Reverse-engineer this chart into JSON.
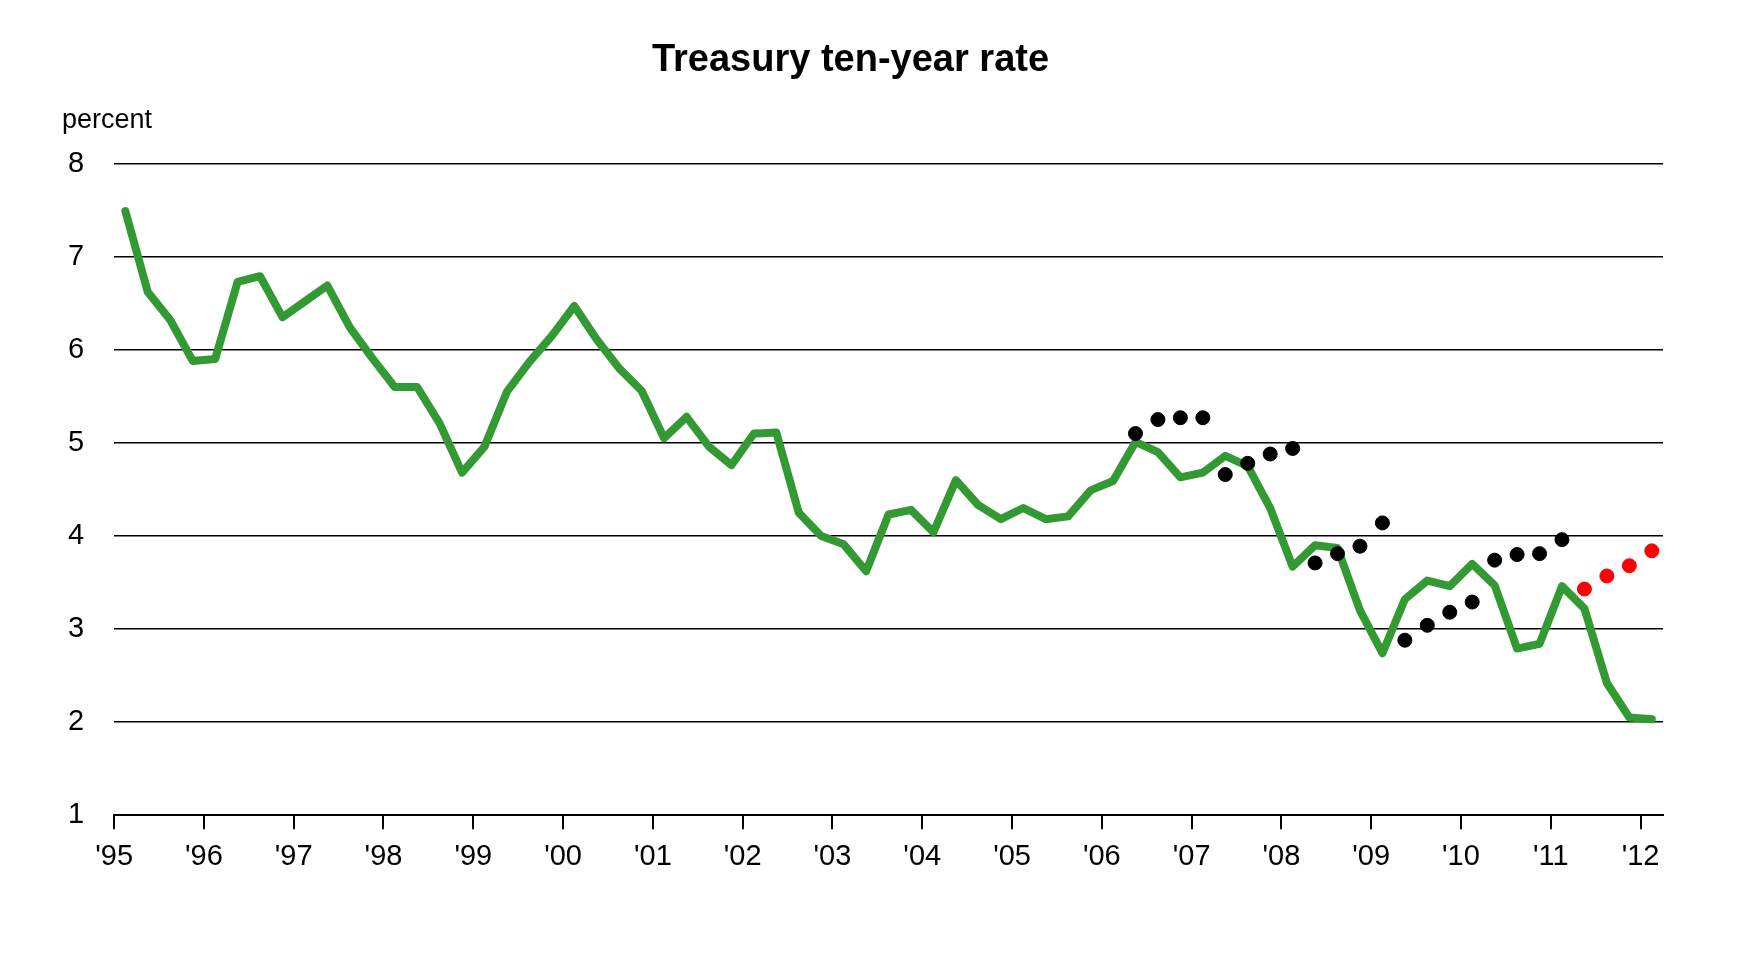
{
  "chart_data": {
    "type": "line",
    "title": "Treasury ten-year rate",
    "ylabel": "percent",
    "xlim": [
      1995,
      2012.25
    ],
    "xticks": [
      {
        "value": 1995,
        "label": "'95"
      },
      {
        "value": 1996,
        "label": "'96"
      },
      {
        "value": 1997,
        "label": "'97"
      },
      {
        "value": 1998,
        "label": "'98"
      },
      {
        "value": 1999,
        "label": "'99"
      },
      {
        "value": 2000,
        "label": "'00"
      },
      {
        "value": 2001,
        "label": "'01"
      },
      {
        "value": 2002,
        "label": "'02"
      },
      {
        "value": 2003,
        "label": "'03"
      },
      {
        "value": 2004,
        "label": "'04"
      },
      {
        "value": 2005,
        "label": "'05"
      },
      {
        "value": 2006,
        "label": "'06"
      },
      {
        "value": 2007,
        "label": "'07"
      },
      {
        "value": 2008,
        "label": "'08"
      },
      {
        "value": 2009,
        "label": "'09"
      },
      {
        "value": 2010,
        "label": "'10"
      },
      {
        "value": 2011,
        "label": "'11"
      },
      {
        "value": 2012,
        "label": "'12"
      }
    ],
    "ylim": [
      1,
      8
    ],
    "yticks": [
      1,
      2,
      3,
      4,
      5,
      6,
      7,
      8
    ],
    "grid": "y",
    "legend": false,
    "series": [
      {
        "type": "line",
        "marker": "none",
        "line_style": "solid",
        "color": "#339933",
        "x": [
          1995.125,
          1995.375,
          1995.625,
          1995.875,
          1996.125,
          1996.375,
          1996.625,
          1996.875,
          1997.125,
          1997.375,
          1997.625,
          1997.875,
          1998.125,
          1998.375,
          1998.625,
          1998.875,
          1999.125,
          1999.375,
          1999.625,
          1999.875,
          2000.125,
          2000.375,
          2000.625,
          2000.875,
          2001.125,
          2001.375,
          2001.625,
          2001.875,
          2002.125,
          2002.375,
          2002.625,
          2002.875,
          2003.125,
          2003.375,
          2003.625,
          2003.875,
          2004.125,
          2004.375,
          2004.625,
          2004.875,
          2005.125,
          2005.375,
          2005.625,
          2005.875,
          2006.125,
          2006.375,
          2006.625,
          2006.875,
          2007.125,
          2007.375,
          2007.625,
          2007.875,
          2008.125,
          2008.375,
          2008.625,
          2008.875,
          2009.125,
          2009.375,
          2009.625,
          2009.875,
          2010.125,
          2010.375,
          2010.625,
          2010.875,
          2011.125,
          2011.375,
          2011.625,
          2011.875,
          2012.125
        ],
        "values": [
          7.49,
          6.62,
          6.32,
          5.88,
          5.9,
          6.73,
          6.79,
          6.35,
          6.52,
          6.69,
          6.24,
          5.91,
          5.6,
          5.6,
          5.21,
          4.68,
          4.96,
          5.55,
          5.87,
          6.15,
          6.47,
          6.11,
          5.8,
          5.56,
          5.05,
          5.28,
          4.96,
          4.76,
          5.1,
          5.11,
          4.25,
          4.0,
          3.91,
          3.62,
          4.23,
          4.28,
          4.04,
          4.6,
          4.33,
          4.18,
          4.3,
          4.18,
          4.21,
          4.49,
          4.59,
          5.01,
          4.9,
          4.63,
          4.68,
          4.86,
          4.75,
          4.3,
          3.67,
          3.9,
          3.87,
          3.2,
          2.74,
          3.32,
          3.52,
          3.46,
          3.7,
          3.47,
          2.79,
          2.84,
          3.46,
          3.22,
          2.42,
          2.05,
          2.03
        ]
      },
      {
        "type": "scatter",
        "marker": "circle",
        "color": "#000000",
        "x": [
          2006.375,
          2006.625,
          2006.875,
          2007.125,
          2007.375,
          2007.625,
          2007.875,
          2008.125,
          2008.375,
          2008.625,
          2008.875,
          2009.125,
          2009.375,
          2009.625,
          2009.875,
          2010.125,
          2010.375,
          2010.625,
          2010.875,
          2011.125
        ],
        "values": [
          5.1,
          5.25,
          5.27,
          5.27,
          4.66,
          4.78,
          4.88,
          4.94,
          3.71,
          3.81,
          3.89,
          4.14,
          2.88,
          3.04,
          3.18,
          3.29,
          3.74,
          3.8,
          3.81,
          3.96
        ]
      },
      {
        "type": "scatter",
        "marker": "circle",
        "color": "#ff0000",
        "x": [
          2011.375,
          2011.625,
          2011.875,
          2012.125
        ],
        "values": [
          3.43,
          3.57,
          3.68,
          3.84
        ]
      }
    ]
  }
}
